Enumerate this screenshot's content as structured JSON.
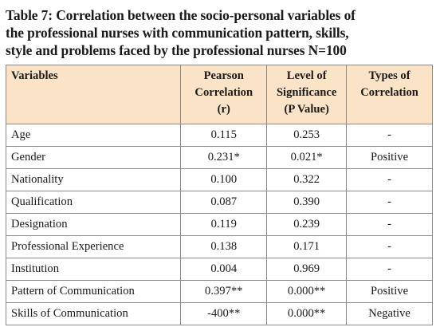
{
  "caption": {
    "line1": "Table 7: Correlation between the socio-personal variables of",
    "line2": "the professional nurses with communication pattern, skills,",
    "line3": "style and problems faced by the professional nurses N=100"
  },
  "table": {
    "headers": {
      "variables": "Variables",
      "pearson_l1": "Pearson",
      "pearson_l2": "Correlation",
      "pearson_l3": "(r)",
      "level_l1": "Level of",
      "level_l2": "Significance",
      "level_l3": "(P Value)",
      "types_l1": "Types of",
      "types_l2": "Correlation"
    },
    "rows": [
      {
        "variable": "Age",
        "r": "0.115",
        "p": "0.253",
        "type": "-"
      },
      {
        "variable": "Gender",
        "r": "0.231*",
        "p": "0.021*",
        "type": "Positive"
      },
      {
        "variable": "Nationality",
        "r": "0.100",
        "p": "0.322",
        "type": "-"
      },
      {
        "variable": "Qualification",
        "r": "0.087",
        "p": "0.390",
        "type": "-"
      },
      {
        "variable": "Designation",
        "r": "0.119",
        "p": "0.239",
        "type": "-"
      },
      {
        "variable": "Professional Experience",
        "r": "0.138",
        "p": "0.171",
        "type": "-"
      },
      {
        "variable": "Institution",
        "r": "0.004",
        "p": "0.969",
        "type": "-"
      },
      {
        "variable": "Pattern of Communication",
        "r": "0.397**",
        "p": "0.000**",
        "type": "Positive"
      },
      {
        "variable": "Skills of Communication",
        "r": "-400**",
        "p": "0.000**",
        "type": "Negative"
      }
    ]
  },
  "colors": {
    "header_bg": "#fbe3c8",
    "border": "#8a8a8a"
  }
}
